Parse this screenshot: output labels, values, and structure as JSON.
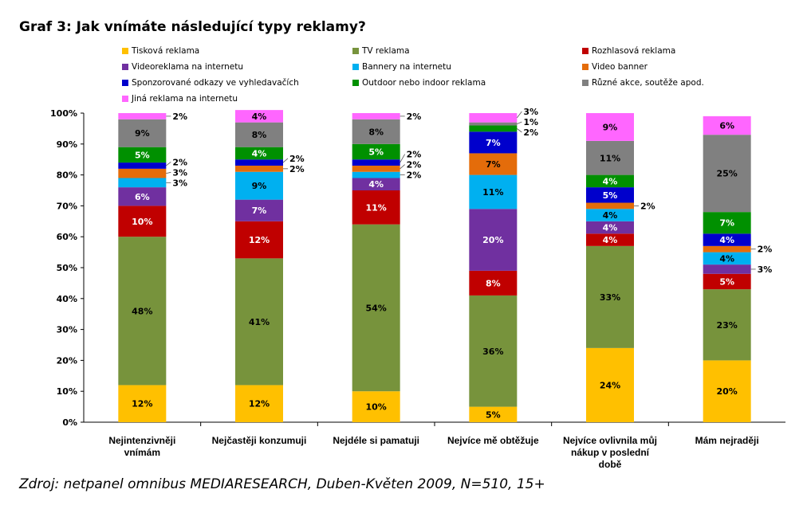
{
  "chart_data": {
    "type": "bar",
    "stacked": true,
    "title": "Graf 3: Jak vnímáte následující typy reklamy?",
    "source": "Zdroj: netpanel omnibus MEDIARESEARCH, Duben-Květen 2009, N=510, 15+",
    "categories": [
      [
        "Nejintenzivněji",
        "vnímám"
      ],
      [
        "Nejčastěji konzumuji"
      ],
      [
        "Nejdéle si pamatuji"
      ],
      [
        "Nejvíce mě obtěžuje"
      ],
      [
        "Nejvíce ovlivnila můj",
        "nákup v poslední",
        "době"
      ],
      [
        "Mám nejraději"
      ]
    ],
    "ylim": [
      0,
      100
    ],
    "yticks": [
      "0%",
      "10%",
      "20%",
      "30%",
      "40%",
      "50%",
      "60%",
      "70%",
      "80%",
      "90%",
      "100%"
    ],
    "legend_position": "top",
    "series": [
      {
        "name": "Tisková reklama",
        "color": "#FFC000",
        "values": [
          12,
          12,
          10,
          5,
          24,
          20
        ]
      },
      {
        "name": "TV reklama",
        "color": "#77933C",
        "values": [
          48,
          41,
          54,
          36,
          33,
          23
        ]
      },
      {
        "name": "Rozhlasová reklama",
        "color": "#C00000",
        "values": [
          10,
          12,
          11,
          8,
          4,
          5
        ]
      },
      {
        "name": "Videoreklama na internetu",
        "color": "#7030A0",
        "values": [
          6,
          7,
          4,
          20,
          4,
          3
        ]
      },
      {
        "name": "Bannery na internetu",
        "color": "#00B0F0",
        "values": [
          3,
          9,
          2,
          11,
          4,
          4
        ]
      },
      {
        "name": "Video banner",
        "color": "#E46C0A",
        "values": [
          3,
          2,
          2,
          7,
          2,
          2
        ]
      },
      {
        "name": "Sponzorované odkazy ve vyhledavačích",
        "color": "#0000CC",
        "values": [
          2,
          2,
          2,
          7,
          5,
          4
        ]
      },
      {
        "name": "Outdoor nebo indoor reklama",
        "color": "#009000",
        "values": [
          5,
          4,
          5,
          2,
          4,
          7
        ]
      },
      {
        "name": "Různé akce, soutěže apod.",
        "color": "#808080",
        "values": [
          9,
          8,
          8,
          1,
          11,
          25
        ]
      },
      {
        "name": "Jiná reklama na internetu",
        "color": "#FF66FF",
        "values": [
          2,
          4,
          2,
          3,
          9,
          6
        ]
      }
    ]
  }
}
